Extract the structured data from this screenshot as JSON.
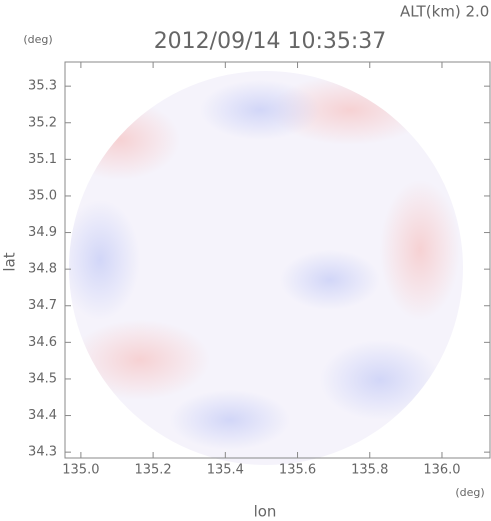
{
  "chart_data": {
    "type": "radar-field",
    "title": "2012/09/14 10:35:37",
    "annotation": "ALT(km) 2.0",
    "x_unit": "(deg)",
    "y_unit": "(deg)",
    "x_label": "lon",
    "y_label": "lat",
    "xlim": [
      134.956,
      136.133
    ],
    "ylim": [
      34.284,
      35.366
    ],
    "xticks": [
      {
        "value": 135.0,
        "label": "135.0"
      },
      135.2,
      135.4,
      135.6,
      135.8,
      {
        "value": 136.0,
        "label": "136.0"
      }
    ],
    "yticks": [
      34.3,
      34.4,
      34.5,
      34.6,
      34.7,
      34.8,
      34.9,
      {
        "value": 35.0,
        "label": "35.0"
      },
      35.1,
      35.2,
      35.3
    ],
    "grid": false
  }
}
